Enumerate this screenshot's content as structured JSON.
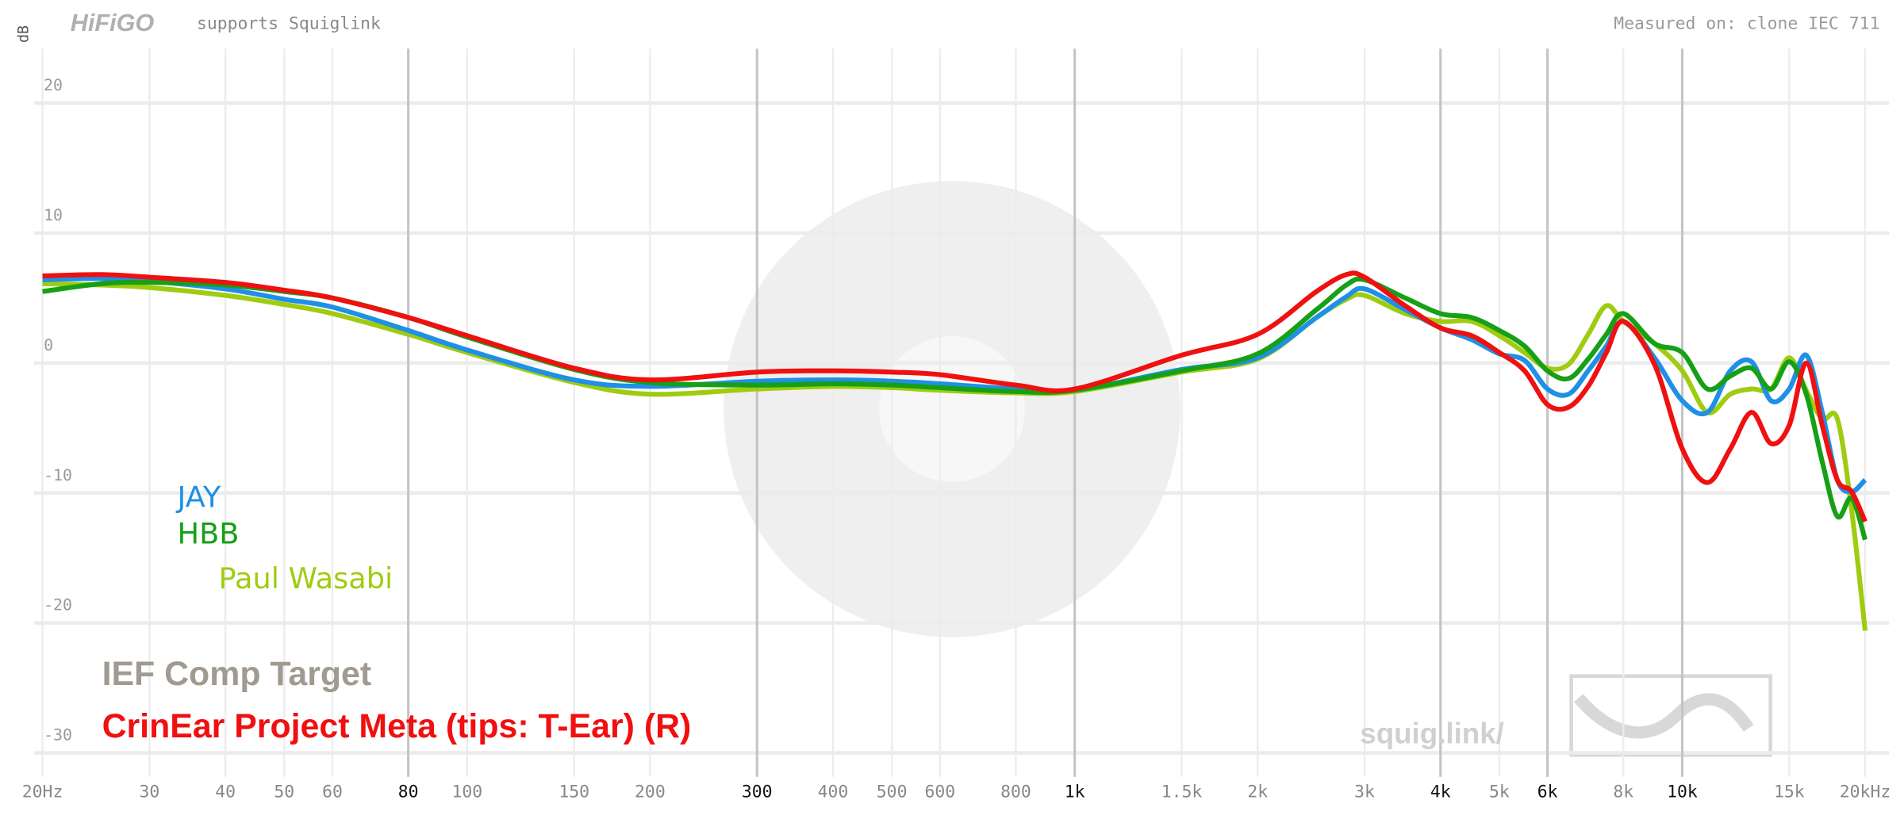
{
  "chart_data": {
    "type": "line",
    "logo": "HiFiGO",
    "subtitle": "supports Squiglink",
    "note": "Measured on: clone IEC 711",
    "ylabel": "dB",
    "watermark": "squig.link/",
    "target": "IEF Comp Target",
    "log_x": true,
    "grid": true,
    "xlim": [
      20,
      20000
    ],
    "ylim": [
      -31,
      24
    ],
    "yticks": [
      -30,
      -20,
      -10,
      0,
      10,
      20
    ],
    "xticks": [
      {
        "value": 20,
        "label": "20Hz"
      },
      30,
      40,
      50,
      60,
      80,
      100,
      150,
      200,
      300,
      400,
      500,
      600,
      800,
      {
        "value": 1000,
        "label": "1k"
      },
      {
        "value": 1500,
        "label": "1.5k"
      },
      {
        "value": 2000,
        "label": "2k"
      },
      {
        "value": 3000,
        "label": "3k"
      },
      {
        "value": 4000,
        "label": "4k"
      },
      {
        "value": 5000,
        "label": "5k"
      },
      {
        "value": 6000,
        "label": "6k"
      },
      {
        "value": 8000,
        "label": "8k"
      },
      {
        "value": 10000,
        "label": "10k"
      },
      {
        "value": 15000,
        "label": "15k"
      },
      {
        "value": 20000,
        "label": "20kHz"
      }
    ],
    "emphasized_xticks": [
      80,
      300,
      1000,
      4000,
      6000,
      10000
    ],
    "x": [
      20,
      25,
      30,
      40,
      50,
      60,
      80,
      100,
      150,
      200,
      300,
      400,
      500,
      600,
      800,
      1000,
      1500,
      2000,
      2500,
      2800,
      3000,
      3500,
      4000,
      4500,
      5000,
      5500,
      6000,
      6500,
      7000,
      7500,
      8000,
      9000,
      10000,
      11000,
      12000,
      13000,
      14000,
      15000,
      16000,
      17000,
      18000,
      19000,
      20000
    ],
    "series": [
      {
        "name": "JAY",
        "color": "#1e90e6",
        "values": [
          6.4,
          6.5,
          6.3,
          5.7,
          4.9,
          4.3,
          2.5,
          1.0,
          -1.3,
          -1.8,
          -1.4,
          -1.3,
          -1.4,
          -1.6,
          -2.0,
          -2.1,
          -0.5,
          0.4,
          3.5,
          5.1,
          5.7,
          4.1,
          2.7,
          1.8,
          0.7,
          0.2,
          -2.0,
          -2.4,
          -0.6,
          1.3,
          3.2,
          0.4,
          -2.9,
          -3.8,
          -0.6,
          0.1,
          -2.9,
          -2.0,
          0.6,
          -3.8,
          -9.0,
          -9.9,
          -9.0
        ]
      },
      {
        "name": "HBB",
        "color": "#16a016",
        "values": [
          5.5,
          6.1,
          6.2,
          6.0,
          5.5,
          5.0,
          3.5,
          2.0,
          -0.5,
          -1.5,
          -1.7,
          -1.6,
          -1.7,
          -1.9,
          -2.2,
          -2.1,
          -0.6,
          0.7,
          4.1,
          6.0,
          6.4,
          5.0,
          3.8,
          3.5,
          2.5,
          1.3,
          -0.6,
          -1.2,
          0.3,
          2.2,
          3.8,
          1.5,
          0.8,
          -2.0,
          -1.0,
          -0.4,
          -2.0,
          0.1,
          -2.4,
          -7.6,
          -11.8,
          -10.4,
          -13.6
        ]
      },
      {
        "name": "Paul Wasabi",
        "color": "#9fcc10",
        "values": [
          6.1,
          6.0,
          5.8,
          5.2,
          4.5,
          3.8,
          2.2,
          0.8,
          -1.5,
          -2.4,
          -2.0,
          -1.8,
          -1.9,
          -2.1,
          -2.3,
          -2.2,
          -0.7,
          0.3,
          3.5,
          4.9,
          5.2,
          3.8,
          3.2,
          3.2,
          2.1,
          0.8,
          -0.4,
          -0.1,
          2.2,
          4.4,
          3.2,
          1.5,
          -0.6,
          -3.8,
          -2.4,
          -2.0,
          -2.0,
          0.4,
          -2.1,
          -4.3,
          -4.3,
          -11.3,
          -20.6
        ]
      },
      {
        "name": "CrinEar Project Meta (tips: T-Ear) (R)",
        "color": "#f01010",
        "values": [
          6.7,
          6.8,
          6.6,
          6.2,
          5.6,
          5.0,
          3.5,
          2.1,
          -0.4,
          -1.3,
          -0.7,
          -0.6,
          -0.7,
          -0.9,
          -1.7,
          -2.0,
          0.6,
          2.2,
          5.5,
          6.8,
          6.6,
          4.4,
          2.7,
          2.1,
          0.8,
          -0.6,
          -3.2,
          -3.4,
          -1.8,
          0.8,
          3.2,
          -0.1,
          -6.6,
          -9.2,
          -6.6,
          -3.8,
          -6.2,
          -4.8,
          0.0,
          -4.8,
          -9.0,
          -9.9,
          -12.2
        ]
      }
    ]
  }
}
